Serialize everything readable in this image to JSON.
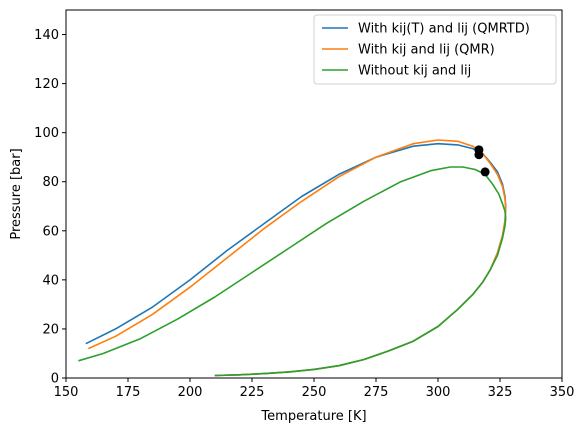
{
  "chart_data": {
    "type": "line",
    "title": "",
    "xlabel": "Temperature [K]",
    "ylabel": "Pressure [bar]",
    "xlim": [
      150,
      350
    ],
    "ylim": [
      0,
      150
    ],
    "xticks": [
      150,
      175,
      200,
      225,
      250,
      275,
      300,
      325,
      350
    ],
    "yticks": [
      0,
      20,
      40,
      60,
      80,
      100,
      120,
      140
    ],
    "grid": false,
    "legend": "top-right",
    "series": [
      {
        "name": "With kij(T) and lij (QMRTD)",
        "color": "#1f77b4",
        "x": [
          158,
          170,
          185,
          200,
          215,
          230,
          245,
          260,
          275,
          290,
          300,
          308,
          314,
          318,
          321,
          324,
          326,
          327,
          327.3,
          327,
          326,
          324,
          321,
          318,
          314,
          308,
          300,
          290,
          280,
          270,
          260,
          250,
          240,
          230,
          220,
          210
        ],
        "y": [
          14,
          20,
          29,
          40,
          52,
          63,
          74,
          83,
          90,
          94.5,
          95.5,
          95,
          93.5,
          91.5,
          88,
          84,
          79,
          74,
          70,
          64,
          58,
          51,
          44,
          39,
          34,
          28,
          21,
          15,
          11,
          7.5,
          5,
          3.5,
          2.5,
          1.8,
          1.3,
          1
        ]
      },
      {
        "name": "With kij and lij (QMR)",
        "color": "#ff7f0e",
        "x": [
          159,
          170,
          185,
          200,
          215,
          230,
          245,
          260,
          275,
          290,
          300,
          308,
          314,
          318,
          321,
          324,
          326,
          327,
          327.3,
          327,
          326,
          324,
          321,
          318,
          314,
          308,
          300,
          290,
          280,
          270,
          260,
          250,
          240,
          230,
          220,
          210
        ],
        "y": [
          12,
          17,
          26,
          37,
          49,
          61,
          72,
          82,
          90,
          95.5,
          97,
          96.5,
          94.5,
          91.5,
          87.5,
          83,
          78,
          73,
          69,
          64,
          58,
          51,
          44,
          39,
          34,
          28,
          21,
          15,
          11,
          7.5,
          5,
          3.5,
          2.5,
          1.8,
          1.3,
          1
        ]
      },
      {
        "name": "Without kij and lij",
        "color": "#2ca02c",
        "x": [
          155,
          165,
          180,
          195,
          210,
          225,
          240,
          255,
          270,
          285,
          297,
          305,
          310,
          315,
          319,
          322,
          324.5,
          326,
          327,
          327.3,
          327,
          326,
          324,
          321,
          318,
          314,
          308,
          300,
          290,
          280,
          270,
          260,
          250,
          240,
          230,
          220,
          210
        ],
        "y": [
          7,
          10,
          16,
          24,
          33,
          43,
          53,
          63,
          72,
          80,
          84.5,
          86,
          86,
          85,
          83,
          79,
          75,
          71,
          68,
          65,
          62,
          57,
          50,
          44,
          39,
          34,
          28,
          21,
          15,
          11,
          7.5,
          5,
          3.5,
          2.5,
          1.8,
          1.3,
          1
        ]
      }
    ],
    "markers": [
      {
        "x": 316.5,
        "y": 93,
        "color": "#000000"
      },
      {
        "x": 316.5,
        "y": 91,
        "color": "#000000"
      },
      {
        "x": 319,
        "y": 84,
        "color": "#000000"
      }
    ]
  }
}
